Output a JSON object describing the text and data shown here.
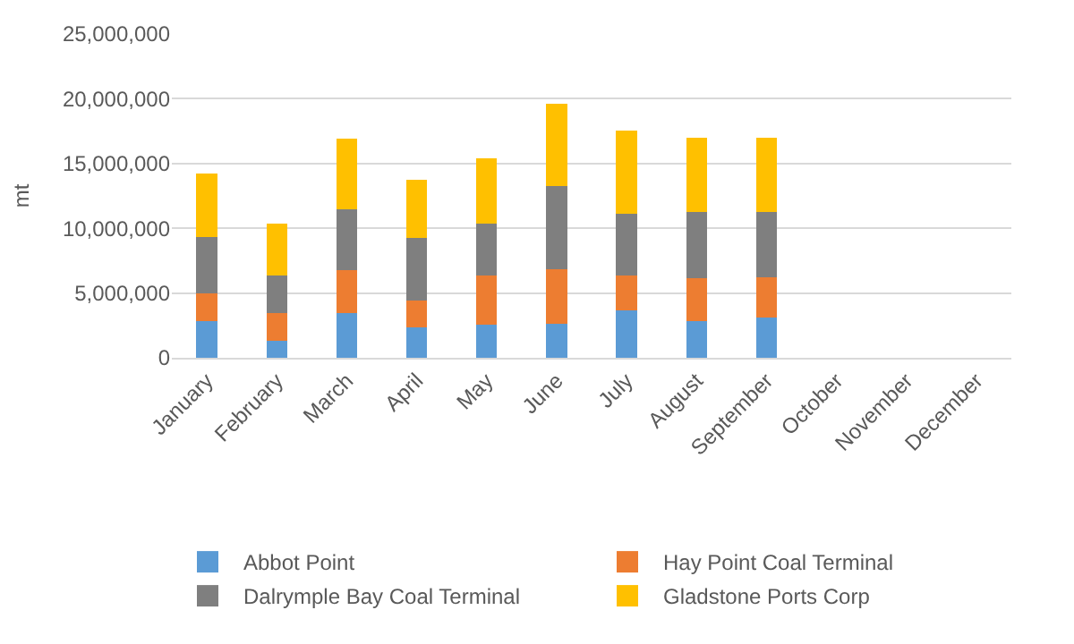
{
  "chart_data": {
    "type": "bar",
    "stacked": true,
    "ylabel": "mt",
    "categories": [
      "January",
      "February",
      "March",
      "April",
      "May",
      "June",
      "July",
      "August",
      "September",
      "October",
      "November",
      "December"
    ],
    "series": [
      {
        "name": "Abbot Point",
        "color": "#5b9bd5",
        "values": [
          2830000,
          1310000,
          3420000,
          2320000,
          2570000,
          2620000,
          3670000,
          2830000,
          3080000,
          null,
          null,
          null
        ]
      },
      {
        "name": "Hay Point Coal Terminal",
        "color": "#ed7d31",
        "values": [
          2110000,
          2110000,
          3370000,
          2110000,
          3760000,
          4220000,
          2660000,
          3290000,
          3120000,
          null,
          null,
          null
        ]
      },
      {
        "name": "Dalrymple Bay Coal Terminal",
        "color": "#7f7f7f",
        "values": [
          4390000,
          2910000,
          4690000,
          4850000,
          4050000,
          6410000,
          4810000,
          5150000,
          5070000,
          null,
          null,
          null
        ]
      },
      {
        "name": "Gladstone Ports Corp",
        "color": "#ffc000",
        "values": [
          4870000,
          4010000,
          5440000,
          4430000,
          5020000,
          6330000,
          6370000,
          5730000,
          5730000,
          null,
          null,
          null
        ]
      }
    ],
    "ylim": [
      0,
      25000000
    ],
    "yticks": [
      {
        "value": 0,
        "label": "0"
      },
      {
        "value": 5000000,
        "label": "5,000,000"
      },
      {
        "value": 10000000,
        "label": "10,000,000"
      },
      {
        "value": 15000000,
        "label": "15,000,000"
      },
      {
        "value": 20000000,
        "label": "20,000,000"
      },
      {
        "value": 25000000,
        "label": "25,000,000"
      }
    ],
    "grid": "y",
    "legend": "bottom"
  }
}
